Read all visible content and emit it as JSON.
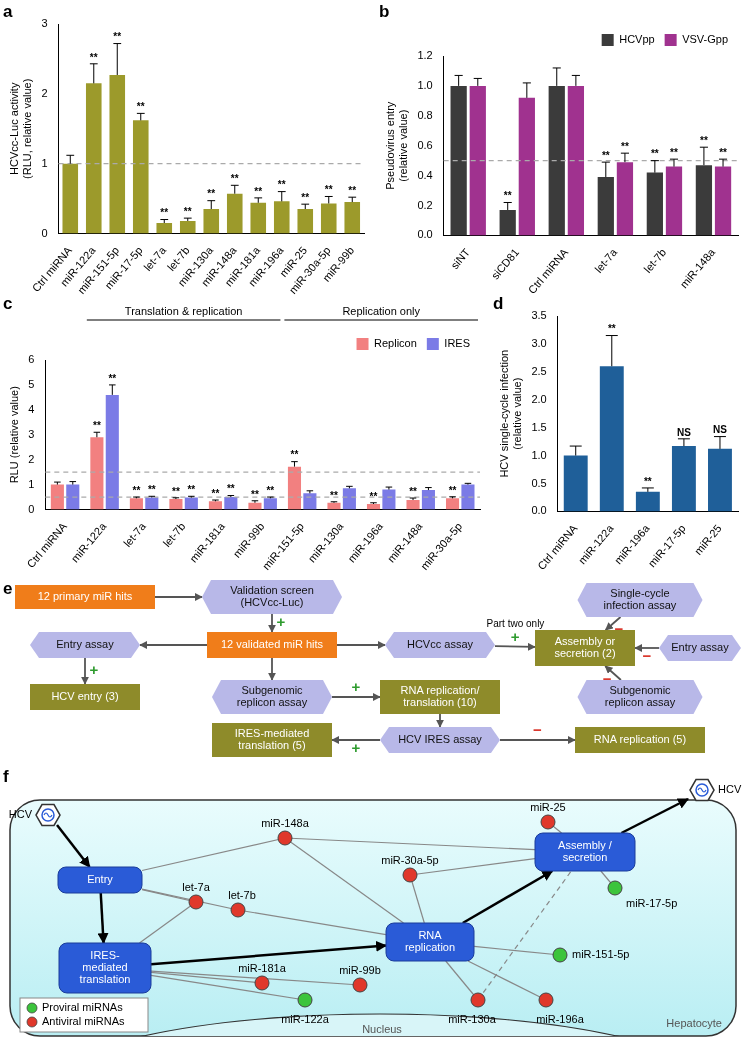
{
  "chart_data": [
    {
      "panel": "a",
      "type": "bar",
      "ylabel": [
        "HCVcc-Luc activity",
        "(RLU, relative value)"
      ],
      "categories": [
        "Ctrl miRNA",
        "miR-122a",
        "miR-151-5p",
        "miR-17-5p",
        "let-7a",
        "let-7b",
        "miR-130a",
        "miR-148a",
        "miR-181a",
        "miR-196a",
        "miR-25",
        "miR-30a-5p",
        "miR-99b"
      ],
      "values": [
        1,
        2.15,
        2.27,
        1.62,
        0.15,
        0.18,
        0.35,
        0.57,
        0.44,
        0.46,
        0.35,
        0.43,
        0.45
      ],
      "errors": [
        0.12,
        0.28,
        0.45,
        0.1,
        0.05,
        0.04,
        0.12,
        0.12,
        0.07,
        0.14,
        0.07,
        0.1,
        0.07
      ],
      "marks": [
        null,
        "**",
        "**",
        "**",
        "**",
        "**",
        "**",
        "**",
        "**",
        "**",
        "**",
        "**",
        "**"
      ],
      "color": "#9c9a2b",
      "ylim": [
        0,
        3
      ],
      "yticks": [
        0,
        1,
        2,
        3
      ],
      "grid": false,
      "reference_lines": [
        1
      ]
    },
    {
      "panel": "b",
      "type": "bar",
      "ylabel": [
        "Pseudovirus entry",
        "(relative value)"
      ],
      "categories": [
        "siNT",
        "siCD81",
        "Ctrl miRNA",
        "let-7a",
        "let-7b",
        "miR-148a"
      ],
      "series": [
        {
          "name": "HCVpp",
          "color": "#3b3b3b",
          "values": [
            1,
            0.17,
            1,
            0.39,
            0.42,
            0.47
          ],
          "errors": [
            0.07,
            0.05,
            0.12,
            0.1,
            0.08,
            0.12
          ],
          "marks": [
            null,
            "**",
            null,
            "**",
            "**",
            "**"
          ]
        },
        {
          "name": "VSV-Gpp",
          "color": "#a0328f",
          "values": [
            1,
            0.92,
            1,
            0.49,
            0.46,
            0.46
          ],
          "errors": [
            0.05,
            0.1,
            0.07,
            0.06,
            0.05,
            0.05
          ],
          "marks": [
            null,
            null,
            null,
            "**",
            "**",
            "**"
          ]
        }
      ],
      "ylim": [
        0,
        1.2
      ],
      "yticks": [
        {
          "value": 0,
          "label": "0.0"
        },
        0.2,
        0.4,
        0.6,
        0.8,
        {
          "value": 1,
          "label": "1.0"
        },
        1.2
      ],
      "grid": false,
      "legend": "upper right",
      "reference_lines": [
        0.5
      ]
    },
    {
      "panel": "c",
      "type": "bar",
      "ylabel": "RLU (relative value)",
      "categories": [
        "Ctrl miRNA",
        "miR-122a",
        "let-7a",
        "let-7b",
        "miR-181a",
        "miR-99b",
        "miR-151-5p",
        "miR-130a",
        "miR-196a",
        "miR-148a",
        "miR-30a-5p"
      ],
      "series": [
        {
          "name": "Replicon",
          "color": "#f28080",
          "values": [
            1,
            2.9,
            0.45,
            0.42,
            0.33,
            0.27,
            1.72,
            0.27,
            0.22,
            0.38,
            0.45
          ],
          "errors": [
            0.1,
            0.2,
            0.05,
            0.05,
            0.05,
            0.08,
            0.2,
            0.04,
            0.05,
            0.08,
            0.06
          ],
          "marks": [
            null,
            "**",
            "**",
            "**",
            "**",
            "**",
            "**",
            "**",
            "**",
            "**",
            "**"
          ]
        },
        {
          "name": "IRES",
          "color": "#7b7be6",
          "values": [
            1,
            4.6,
            0.48,
            0.48,
            0.5,
            0.45,
            0.65,
            0.85,
            0.8,
            0.78,
            1
          ],
          "errors": [
            0.12,
            0.4,
            0.05,
            0.05,
            0.06,
            0.05,
            0.1,
            0.08,
            0.1,
            0.1,
            0.05
          ],
          "marks": [
            null,
            "**",
            "**",
            "**",
            "**",
            "**",
            null,
            null,
            null,
            null,
            null
          ]
        }
      ],
      "groups": [
        {
          "label": "Translation & replication",
          "from": "miR-122a",
          "to": "miR-99b"
        },
        {
          "label": "Replication only",
          "from": "miR-151-5p",
          "to": "miR-30a-5p"
        }
      ],
      "ylim": [
        0,
        6
      ],
      "yticks": [
        0,
        1,
        2,
        3,
        4,
        5,
        6
      ],
      "grid": false,
      "legend": "upper right",
      "reference_lines": [
        0.5,
        1.5
      ]
    },
    {
      "panel": "d",
      "type": "bar",
      "ylabel": [
        "HCV single-cycle infection",
        "(relative value)"
      ],
      "categories": [
        "Ctrl miRNA",
        "miR-122a",
        "miR-196a",
        "miR-17-5p",
        "miR-25"
      ],
      "values": [
        1,
        2.6,
        0.35,
        1.17,
        1.12
      ],
      "errors": [
        0.17,
        0.55,
        0.07,
        0.13,
        0.22
      ],
      "marks": [
        null,
        "**",
        "**",
        "NS",
        "NS"
      ],
      "color": "#1f5f99",
      "ylim": [
        0,
        3.5
      ],
      "yticks": [
        {
          "value": 0,
          "label": "0.0"
        },
        0.5,
        {
          "value": 1,
          "label": "1.0"
        },
        1.5,
        {
          "value": 2,
          "label": "2.0"
        },
        2.5,
        {
          "value": 3,
          "label": "3.0"
        },
        3.5
      ],
      "grid": false
    }
  ],
  "diagrams": [
    {
      "panel": "e",
      "nodes": [
        {
          "label": [
            "12 primary miR hits"
          ],
          "color": "#f07d1a"
        },
        {
          "label": [
            "Validation screen",
            "(HCVcc-Luc)"
          ],
          "color": "#b8b8e8"
        },
        {
          "label": [
            "12 validated miR hits"
          ],
          "color": "#f07d1a"
        },
        {
          "label": [
            "Entry assay"
          ],
          "color": "#b8b8e8"
        },
        {
          "label": [
            "HCV entry (3)"
          ],
          "color": "#8e8b2a"
        },
        {
          "label": [
            "HCVcc assay"
          ],
          "color": "#b8b8e8"
        },
        {
          "label": [
            "Subgenomic",
            "replicon assay"
          ],
          "color": "#b8b8e8"
        },
        {
          "label": [
            "RNA replication/",
            "translation (10)"
          ],
          "color": "#8e8b2a"
        },
        {
          "label": [
            "HCV IRES assay"
          ],
          "color": "#b8b8e8"
        },
        {
          "label": [
            "IRES-mediated",
            "translation (5)"
          ],
          "color": "#8e8b2a"
        },
        {
          "label": [
            "RNA replication (5)"
          ],
          "color": "#8e8b2a"
        },
        {
          "label": [
            "Assembly or",
            "secretion (2)"
          ],
          "color": "#8e8b2a"
        },
        {
          "label": [
            "Single-cycle",
            "infection assay"
          ],
          "color": "#b8b8e8"
        },
        {
          "label": [
            "Entry assay"
          ],
          "color": "#b8b8e8"
        },
        {
          "label": [
            "Subgenomic",
            "replicon assay"
          ],
          "color": "#b8b8e8"
        }
      ],
      "edges": [
        {
          "from": 0,
          "to": 1
        },
        {
          "from": 1,
          "to": 2,
          "sign": "+"
        },
        {
          "from": 2,
          "to": 3
        },
        {
          "from": 3,
          "to": 4,
          "sign": "+"
        },
        {
          "from": 2,
          "to": 5
        },
        {
          "from": 2,
          "to": 6
        },
        {
          "from": 6,
          "to": 7,
          "sign": "+"
        },
        {
          "from": 7,
          "to": 8
        },
        {
          "from": 8,
          "to": 9,
          "sign": "+"
        },
        {
          "from": 8,
          "to": 10,
          "sign": "−"
        },
        {
          "from": 5,
          "to": 11,
          "sign": "+",
          "note": "Part two only"
        },
        {
          "from": 12,
          "to": 11,
          "sign": "−"
        },
        {
          "from": 13,
          "to": 11,
          "sign": "−"
        },
        {
          "from": 14,
          "to": 11,
          "sign": "−"
        }
      ]
    },
    {
      "panel": "f",
      "virus_in": "HCV",
      "virus_out": "HCV",
      "processes": [
        {
          "label": [
            "Entry"
          ]
        },
        {
          "label": [
            "IRES-",
            "mediated",
            "translation"
          ]
        },
        {
          "label": [
            "RNA",
            "replication"
          ]
        },
        {
          "label": [
            "Assembly /",
            "secretion"
          ]
        }
      ],
      "flow": [
        [
          0,
          1
        ],
        [
          1,
          2
        ],
        [
          2,
          3
        ]
      ],
      "mirnas": [
        {
          "label": "miR-148a",
          "color": "#e0382b"
        },
        {
          "label": "let-7a",
          "color": "#e0382b"
        },
        {
          "label": "let-7b",
          "color": "#e0382b"
        },
        {
          "label": "miR-25",
          "color": "#e0382b"
        },
        {
          "label": "miR-30a-5p",
          "color": "#e0382b"
        },
        {
          "label": "miR-130a",
          "color": "#e0382b"
        },
        {
          "label": "miR-196a",
          "color": "#e0382b"
        },
        {
          "label": "miR-151-5p",
          "color": "#3cc43c"
        },
        {
          "label": "miR-17-5p",
          "color": "#3cc43c"
        },
        {
          "label": "miR-181a",
          "color": "#e0382b"
        },
        {
          "label": "miR-122a",
          "color": "#3cc43c"
        },
        {
          "label": "miR-99b",
          "color": "#e0382b"
        }
      ],
      "links": [
        {
          "from": 0,
          "to": 0
        },
        {
          "from": 0,
          "to": 2
        },
        {
          "from": 0,
          "to": 3
        },
        {
          "from": 1,
          "to": 0
        },
        {
          "from": 1,
          "to": 1
        },
        {
          "from": 2,
          "to": 0
        },
        {
          "from": 2,
          "to": 2
        },
        {
          "from": 3,
          "to": 3
        },
        {
          "from": 4,
          "to": 2
        },
        {
          "from": 4,
          "to": 3
        },
        {
          "from": 5,
          "to": 2
        },
        {
          "from": 5,
          "to": 3,
          "line_style": "dashed"
        },
        {
          "from": 6,
          "to": 2
        },
        {
          "from": 7,
          "to": 2
        },
        {
          "from": 8,
          "to": 3
        },
        {
          "from": 9,
          "to": 1
        },
        {
          "from": 10,
          "to": 1
        },
        {
          "from": 11,
          "to": 1
        }
      ],
      "legend": [
        {
          "label": "Proviral miRNAs",
          "color": "#3cc43c"
        },
        {
          "label": "Antiviral miRNAs",
          "color": "#e0382b"
        }
      ],
      "texts": [
        "Nucleus",
        "Hepatocyte"
      ]
    }
  ]
}
